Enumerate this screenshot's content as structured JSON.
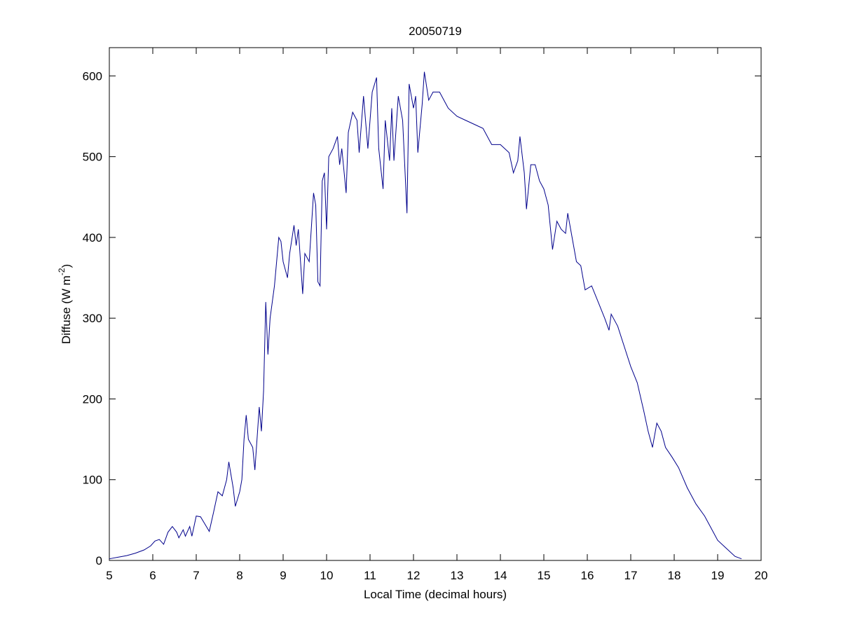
{
  "chart_data": {
    "type": "line",
    "title": "20050719",
    "xlabel": "Local Time (decimal hours)",
    "ylabel_parts": [
      "Diffuse (W m",
      "-2",
      ")"
    ],
    "xlim": [
      5,
      20
    ],
    "ylim": [
      0,
      635
    ],
    "xticks": [
      5,
      6,
      7,
      8,
      9,
      10,
      11,
      12,
      13,
      14,
      15,
      16,
      17,
      18,
      19,
      20
    ],
    "yticks": [
      0,
      100,
      200,
      300,
      400,
      500,
      600
    ],
    "grid": false,
    "series": [
      {
        "color": "#00008b",
        "x": [
          5.0,
          5.2,
          5.4,
          5.6,
          5.8,
          5.95,
          6.05,
          6.15,
          6.25,
          6.35,
          6.45,
          6.55,
          6.6,
          6.7,
          6.75,
          6.85,
          6.9,
          7.0,
          7.1,
          7.2,
          7.3,
          7.4,
          7.5,
          7.6,
          7.7,
          7.75,
          7.85,
          7.9,
          8.0,
          8.05,
          8.1,
          8.15,
          8.2,
          8.3,
          8.35,
          8.45,
          8.5,
          8.55,
          8.6,
          8.65,
          8.7,
          8.8,
          8.9,
          8.95,
          9.0,
          9.1,
          9.15,
          9.25,
          9.3,
          9.35,
          9.45,
          9.5,
          9.6,
          9.7,
          9.75,
          9.8,
          9.85,
          9.9,
          9.95,
          10.0,
          10.05,
          10.15,
          10.25,
          10.3,
          10.35,
          10.45,
          10.5,
          10.6,
          10.7,
          10.75,
          10.85,
          10.95,
          11.05,
          11.15,
          11.2,
          11.3,
          11.35,
          11.45,
          11.5,
          11.55,
          11.65,
          11.75,
          11.85,
          11.9,
          12.0,
          12.05,
          12.1,
          12.2,
          12.25,
          12.35,
          12.45,
          12.6,
          12.8,
          13.0,
          13.2,
          13.4,
          13.6,
          13.8,
          14.0,
          14.2,
          14.3,
          14.4,
          14.45,
          14.55,
          14.6,
          14.7,
          14.8,
          14.9,
          15.0,
          15.1,
          15.2,
          15.3,
          15.4,
          15.5,
          15.55,
          15.65,
          15.75,
          15.85,
          15.95,
          16.1,
          16.25,
          16.4,
          16.5,
          16.55,
          16.7,
          16.85,
          17.0,
          17.15,
          17.3,
          17.4,
          17.5,
          17.6,
          17.7,
          17.8,
          17.95,
          18.1,
          18.3,
          18.5,
          18.7,
          18.85,
          19.0,
          19.2,
          19.4,
          19.55
        ],
        "values": [
          2,
          4,
          6,
          9,
          13,
          18,
          24,
          26,
          20,
          35,
          42,
          35,
          28,
          38,
          30,
          42,
          30,
          55,
          54,
          45,
          36,
          60,
          85,
          80,
          100,
          122,
          90,
          67,
          85,
          100,
          150,
          180,
          150,
          140,
          112,
          190,
          160,
          210,
          320,
          255,
          300,
          340,
          400,
          395,
          370,
          350,
          380,
          415,
          390,
          410,
          330,
          380,
          370,
          455,
          440,
          345,
          340,
          470,
          480,
          410,
          500,
          510,
          525,
          490,
          510,
          455,
          530,
          555,
          545,
          505,
          575,
          510,
          580,
          598,
          510,
          460,
          545,
          495,
          560,
          495,
          575,
          545,
          430,
          590,
          560,
          575,
          505,
          565,
          605,
          570,
          580,
          580,
          560,
          550,
          545,
          540,
          535,
          515,
          515,
          505,
          480,
          495,
          525,
          480,
          435,
          490,
          490,
          470,
          460,
          440,
          385,
          420,
          410,
          405,
          430,
          400,
          370,
          365,
          335,
          340,
          320,
          300,
          285,
          305,
          290,
          265,
          240,
          220,
          185,
          160,
          140,
          170,
          160,
          140,
          128,
          115,
          90,
          70,
          55,
          40,
          25,
          15,
          5,
          2
        ]
      }
    ]
  }
}
